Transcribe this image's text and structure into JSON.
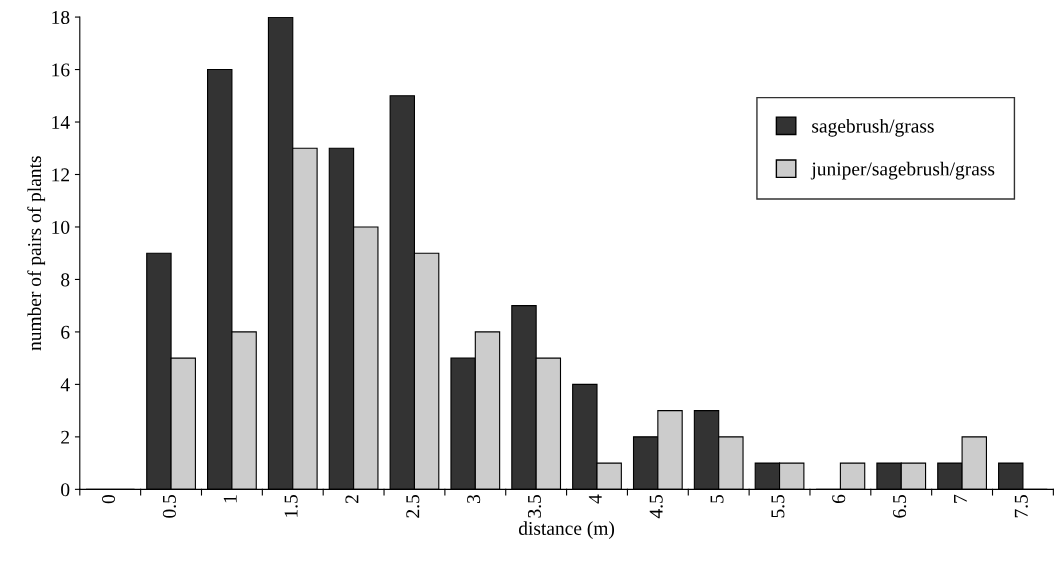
{
  "chart_data": {
    "type": "bar",
    "xlabel": "distance (m)",
    "ylabel": "number of pairs of plants",
    "categories": [
      "0",
      "0.5",
      "1",
      "1.5",
      "2",
      "2.5",
      "3",
      "3.5",
      "4",
      "4.5",
      "5",
      "5.5",
      "6",
      "6.5",
      "7",
      "7.5"
    ],
    "series": [
      {
        "name": "sagebrush/grass",
        "color": "#333333",
        "values": [
          0,
          9,
          16,
          18,
          13,
          15,
          5,
          7,
          4,
          2,
          3,
          1,
          0,
          1,
          1,
          1
        ]
      },
      {
        "name": "juniper/sagebrush/grass",
        "color": "#cccccc",
        "values": [
          0,
          5,
          6,
          13,
          10,
          9,
          6,
          5,
          1,
          3,
          2,
          1,
          1,
          1,
          2,
          0
        ]
      }
    ],
    "ylim": [
      0,
      18
    ],
    "yticks": [
      0,
      2,
      4,
      6,
      8,
      10,
      12,
      14,
      16,
      18
    ],
    "grid": false,
    "legend": "top right"
  }
}
